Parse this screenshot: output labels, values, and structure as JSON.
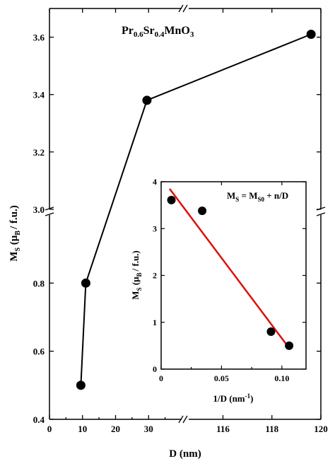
{
  "chart_data": [
    {
      "type": "line",
      "title_parts": [
        "Pr",
        "0.6",
        "Sr",
        "0.4",
        "MnO",
        "3"
      ],
      "xlabel": "D (nm)",
      "ylabel_parts": [
        "M",
        "S",
        " (μ",
        "B",
        "/ f.u.)"
      ],
      "x_axis_break": {
        "left_segment": [
          0,
          40
        ],
        "right_segment": [
          114.6,
          120
        ],
        "break_symbol": "//"
      },
      "y_axis_break": {
        "lower_segment": [
          0.4,
          1.0
        ],
        "upper_segment": [
          3.0,
          3.7
        ],
        "break_symbol": "//"
      },
      "x_ticks_left": [
        "0",
        "10",
        "20",
        "30"
      ],
      "x_ticks_right": [
        "116",
        "118",
        "120"
      ],
      "y_ticks_lower": [
        "0.4",
        "0.6",
        "0.8"
      ],
      "y_ticks_upper": [
        "3.0",
        "3.2",
        "3.4",
        "3.6"
      ],
      "series": [
        {
          "x": [
            9.5,
            11,
            29.5,
            119.6
          ],
          "y": [
            0.5,
            0.8,
            3.38,
            3.61
          ]
        }
      ],
      "grid": false,
      "legend": false
    },
    {
      "type": "scatter",
      "inset": true,
      "annotation_parts": [
        "M",
        "S",
        " = M",
        "S0",
        " + n/D"
      ],
      "xlabel_parts": [
        "1/D (nm",
        "-1",
        ")"
      ],
      "ylabel_parts": [
        "M",
        "S",
        " (μ",
        "B",
        "/ f.u.)"
      ],
      "xlim": [
        0,
        0.12
      ],
      "ylim": [
        0,
        4
      ],
      "x_ticks": [
        "0",
        "0.05",
        "0.10"
      ],
      "y_ticks": [
        "0",
        "1",
        "2",
        "3",
        "4"
      ],
      "points": {
        "x": [
          0.0085,
          0.034,
          0.091,
          0.106
        ],
        "y": [
          3.61,
          3.38,
          0.8,
          0.5
        ]
      },
      "fit_line": {
        "x": [
          0.007,
          0.106
        ],
        "y": [
          3.85,
          0.45
        ],
        "color": "#dd1111"
      },
      "grid": false,
      "legend": false
    }
  ]
}
